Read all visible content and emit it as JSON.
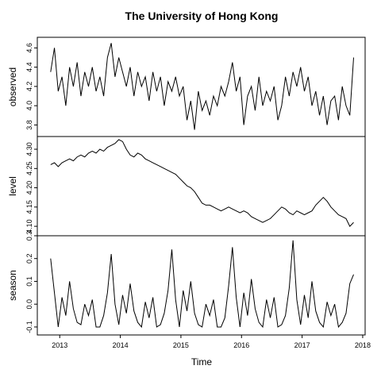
{
  "chart_data": {
    "type": "line",
    "title": "The University of Hong Kong",
    "xlabel": "Time",
    "xlim": [
      2012.63,
      2018.04
    ],
    "xticks": [
      2013,
      2014,
      2015,
      2016,
      2017,
      2018
    ],
    "color": "#000000",
    "x": [
      2012.85,
      2012.9125,
      2012.975,
      2013.0375,
      2013.1,
      2013.1625,
      2013.225,
      2013.2875,
      2013.35,
      2013.4125,
      2013.475,
      2013.5375,
      2013.6,
      2013.6625,
      2013.725,
      2013.7875,
      2013.85,
      2013.9125,
      2013.975,
      2014.0375,
      2014.1,
      2014.1625,
      2014.225,
      2014.2875,
      2014.35,
      2014.4125,
      2014.475,
      2014.5375,
      2014.6,
      2014.6625,
      2014.725,
      2014.7875,
      2014.85,
      2014.9125,
      2014.975,
      2015.0375,
      2015.1,
      2015.1625,
      2015.225,
      2015.2875,
      2015.35,
      2015.4125,
      2015.475,
      2015.5375,
      2015.6,
      2015.6625,
      2015.725,
      2015.7875,
      2015.85,
      2015.9125,
      2015.975,
      2016.0375,
      2016.1,
      2016.1625,
      2016.225,
      2016.2875,
      2016.35,
      2016.4125,
      2016.475,
      2016.5375,
      2016.6,
      2016.6625,
      2016.725,
      2016.7875,
      2016.85,
      2016.9125,
      2016.975,
      2017.0375,
      2017.1,
      2017.1625,
      2017.225,
      2017.2875,
      2017.35,
      2017.4125,
      2017.475,
      2017.5375,
      2017.6,
      2017.6625,
      2017.725,
      2017.7875,
      2017.85
    ],
    "panels": [
      {
        "ylabel": "observed",
        "ylim": [
          3.68,
          4.71
        ],
        "yticks": [
          3.8,
          {
            "value": 4,
            "label": "4.0"
          },
          4.2,
          4.4,
          4.6
        ],
        "values": [
          4.35,
          4.6,
          4.15,
          4.3,
          4.0,
          4.4,
          4.2,
          4.45,
          4.1,
          4.35,
          4.2,
          4.4,
          4.15,
          4.3,
          4.1,
          4.5,
          4.65,
          4.3,
          4.5,
          4.35,
          4.2,
          4.4,
          4.1,
          4.35,
          4.2,
          4.3,
          4.05,
          4.35,
          4.15,
          4.3,
          4.0,
          4.25,
          4.15,
          4.3,
          4.1,
          4.2,
          3.85,
          4.05,
          3.75,
          4.15,
          3.95,
          4.05,
          3.9,
          4.1,
          4.0,
          4.2,
          4.1,
          4.25,
          4.45,
          4.15,
          4.3,
          3.8,
          4.1,
          4.2,
          3.95,
          4.3,
          4.0,
          4.15,
          4.05,
          4.2,
          3.85,
          4.0,
          4.3,
          4.1,
          4.35,
          4.2,
          4.4,
          4.15,
          4.3,
          4.0,
          4.15,
          3.9,
          4.1,
          3.8,
          4.05,
          4.1,
          3.85,
          4.2,
          4.0,
          3.9,
          4.5
        ]
      },
      {
        "ylabel": "level",
        "ylim": [
          4.0755,
          4.333
        ],
        "yticks": [
          {
            "value": 4.1,
            "label": "4.10"
          },
          4.15,
          {
            "value": 4.2,
            "label": "4.20"
          },
          4.25,
          {
            "value": 4.3,
            "label": "4.30"
          }
        ],
        "values": [
          4.26,
          4.265,
          4.255,
          4.265,
          4.27,
          4.275,
          4.27,
          4.28,
          4.285,
          4.28,
          4.29,
          4.295,
          4.29,
          4.3,
          4.295,
          4.305,
          4.31,
          4.315,
          4.325,
          4.32,
          4.3,
          4.285,
          4.28,
          4.29,
          4.285,
          4.275,
          4.27,
          4.265,
          4.26,
          4.255,
          4.25,
          4.245,
          4.24,
          4.235,
          4.225,
          4.215,
          4.205,
          4.2,
          4.19,
          4.175,
          4.16,
          4.155,
          4.155,
          4.15,
          4.145,
          4.14,
          4.145,
          4.15,
          4.145,
          4.14,
          4.135,
          4.14,
          4.135,
          4.125,
          4.12,
          4.115,
          4.11,
          4.115,
          4.12,
          4.13,
          4.14,
          4.15,
          4.145,
          4.135,
          4.13,
          4.14,
          4.135,
          4.13,
          4.135,
          4.14,
          4.155,
          4.165,
          4.175,
          4.165,
          4.15,
          4.14,
          4.13,
          4.125,
          4.12,
          4.1,
          4.11
        ]
      },
      {
        "ylabel": "season",
        "ylim": [
          -0.135,
          0.3
        ],
        "yticks": [
          -0.1,
          {
            "value": 0,
            "label": "0.0"
          },
          0.1,
          0.2,
          0.3
        ],
        "values": [
          0.2,
          0.05,
          -0.1,
          0.03,
          -0.05,
          0.1,
          -0.02,
          -0.08,
          -0.09,
          0.0,
          -0.05,
          0.02,
          -0.1,
          -0.1,
          -0.05,
          0.05,
          0.22,
          0.0,
          -0.09,
          0.04,
          -0.04,
          0.09,
          -0.03,
          -0.08,
          -0.1,
          0.01,
          -0.06,
          0.03,
          -0.1,
          -0.09,
          -0.04,
          0.06,
          0.24,
          0.02,
          -0.1,
          0.06,
          -0.03,
          0.1,
          -0.04,
          -0.09,
          -0.1,
          0.0,
          -0.05,
          0.02,
          -0.1,
          -0.1,
          -0.06,
          0.08,
          0.25,
          0.03,
          -0.1,
          0.05,
          -0.05,
          0.11,
          -0.02,
          -0.08,
          -0.1,
          0.02,
          -0.06,
          0.03,
          -0.1,
          -0.09,
          -0.05,
          0.07,
          0.28,
          0.02,
          -0.09,
          0.04,
          -0.06,
          0.1,
          -0.03,
          -0.08,
          -0.1,
          0.01,
          -0.05,
          0.0,
          -0.1,
          -0.08,
          -0.04,
          0.09,
          0.13
        ]
      }
    ]
  }
}
